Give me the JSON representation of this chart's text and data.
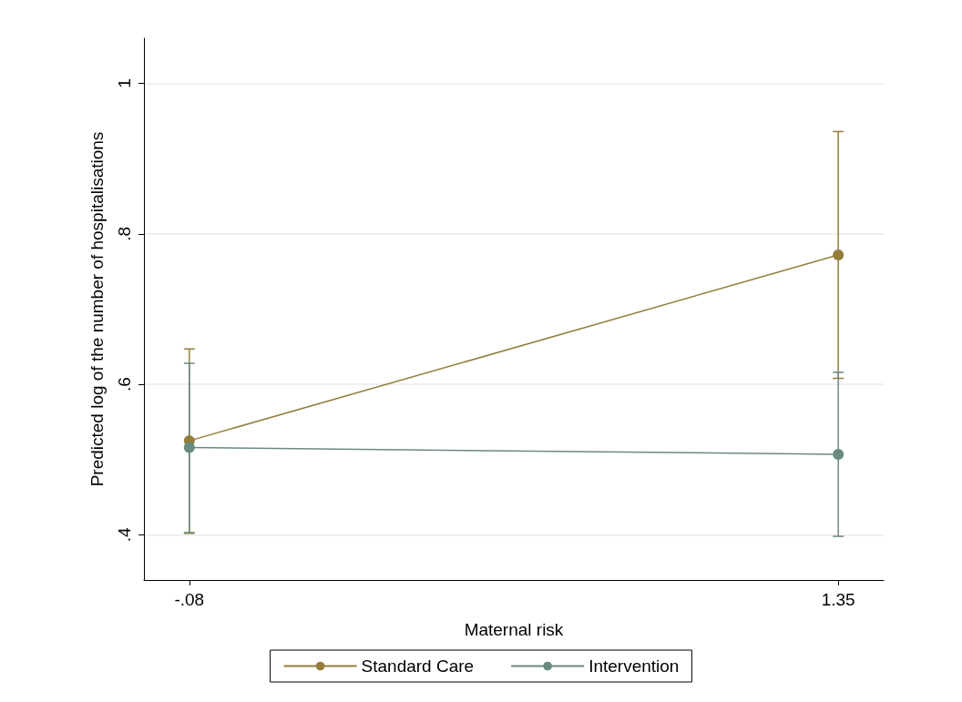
{
  "chart_data": {
    "type": "line",
    "xlabel": "Maternal risk",
    "ylabel": "Predicted log of the number of hospitalisations",
    "x": [
      -0.08,
      1.35
    ],
    "xlim": [
      -0.18,
      1.45
    ],
    "xticks": [
      {
        "value": -0.08,
        "label": "-.08"
      },
      {
        "value": 1.35,
        "label": "1.35"
      }
    ],
    "ylim": [
      0.34,
      1.06
    ],
    "yticks": [
      {
        "value": 0.4,
        "label": ".4"
      },
      {
        "value": 0.6,
        "label": ".6"
      },
      {
        "value": 0.8,
        "label": ".8"
      },
      1
    ],
    "series": [
      {
        "name": "Standard Care",
        "color": "#947d3b",
        "values": [
          0.525,
          0.772
        ],
        "errors": [
          [
            0.402,
            0.647
          ],
          [
            0.608,
            0.936
          ]
        ]
      },
      {
        "name": "Intervention",
        "color": "#6a8a80",
        "values": [
          0.516,
          0.507
        ],
        "errors": [
          [
            0.403,
            0.628
          ],
          [
            0.398,
            0.616
          ]
        ]
      }
    ],
    "grid": "y",
    "legend": "bottom",
    "marker": "circle",
    "line_style": "solid"
  }
}
